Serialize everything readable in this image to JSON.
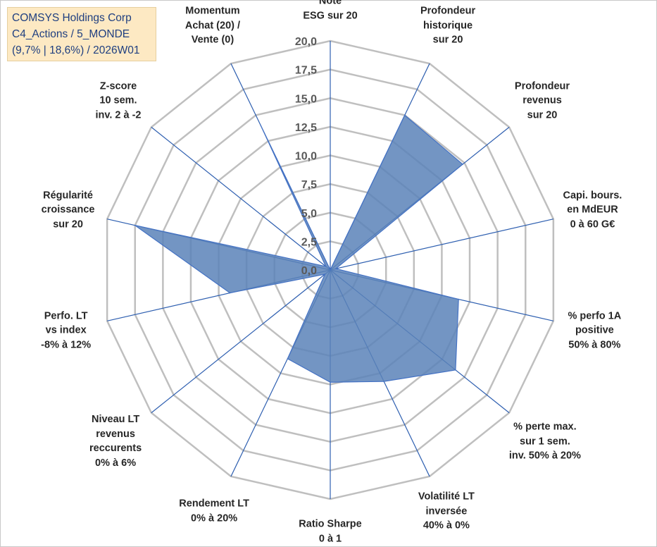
{
  "info_box": {
    "company": "COMSYS Holdings Corp",
    "portfolio": "C4_Actions / 5_MONDE",
    "stats": "(9,7% | 18,6%) / 2026W01"
  },
  "colors": {
    "grid": "#bfbfbf",
    "spoke": "#2e5fb0",
    "fill": "#5b82b9",
    "stroke": "#4472c4",
    "text": "#262626",
    "info_bg": "#fde9c3",
    "info_text": "#1f3f80"
  },
  "chart_data": {
    "type": "radar",
    "title": "",
    "rlim": [
      0,
      20
    ],
    "r_ticks": [
      "0,0",
      "2,5",
      "5,0",
      "7,5",
      "10,0",
      "12,5",
      "15,0",
      "17,5",
      "20,0"
    ],
    "r_tick_values": [
      0,
      2.5,
      5,
      7.5,
      10,
      12.5,
      15,
      17.5,
      20
    ],
    "grid": true,
    "axes": [
      {
        "lines": [
          "Note",
          "ESG sur 20"
        ]
      },
      {
        "lines": [
          "Profondeur",
          "historique",
          "sur 20"
        ]
      },
      {
        "lines": [
          "Profondeur",
          "revenus",
          "sur 20"
        ]
      },
      {
        "lines": [
          "Capi. bours.",
          "en MdEUR",
          "0 à 60 G€"
        ]
      },
      {
        "lines": [
          "% perfo 1A",
          "positive",
          "50% à 80%"
        ]
      },
      {
        "lines": [
          "% perte max.",
          "sur 1 sem.",
          "inv. 50% à 20%"
        ]
      },
      {
        "lines": [
          "Volatilité LT",
          "inversée",
          "40% à 0%"
        ]
      },
      {
        "lines": [
          "Ratio Sharpe",
          "0 à 1"
        ]
      },
      {
        "lines": [
          "Rendement LT",
          "0% à 20%"
        ]
      },
      {
        "lines": [
          "Niveau LT",
          "revenus",
          "reccurents",
          "0% à 6%"
        ]
      },
      {
        "lines": [
          "Perfo. LT",
          "vs index",
          "-8% à 12%"
        ]
      },
      {
        "lines": [
          "Régularité",
          "croissance",
          "sur 20"
        ]
      },
      {
        "lines": [
          "Z-score",
          "10 sem.",
          "inv. 2 à -2"
        ]
      },
      {
        "lines": [
          "Momentum",
          "Achat (20) /",
          "Vente (0)"
        ]
      }
    ],
    "series": [
      {
        "name": "COMSYS Holdings Corp",
        "values": [
          0,
          15.0,
          14.8,
          0.5,
          11.5,
          14.0,
          10.8,
          9.8,
          8.6,
          0.6,
          9.0,
          17.5,
          0.5,
          14.0
        ]
      }
    ]
  }
}
